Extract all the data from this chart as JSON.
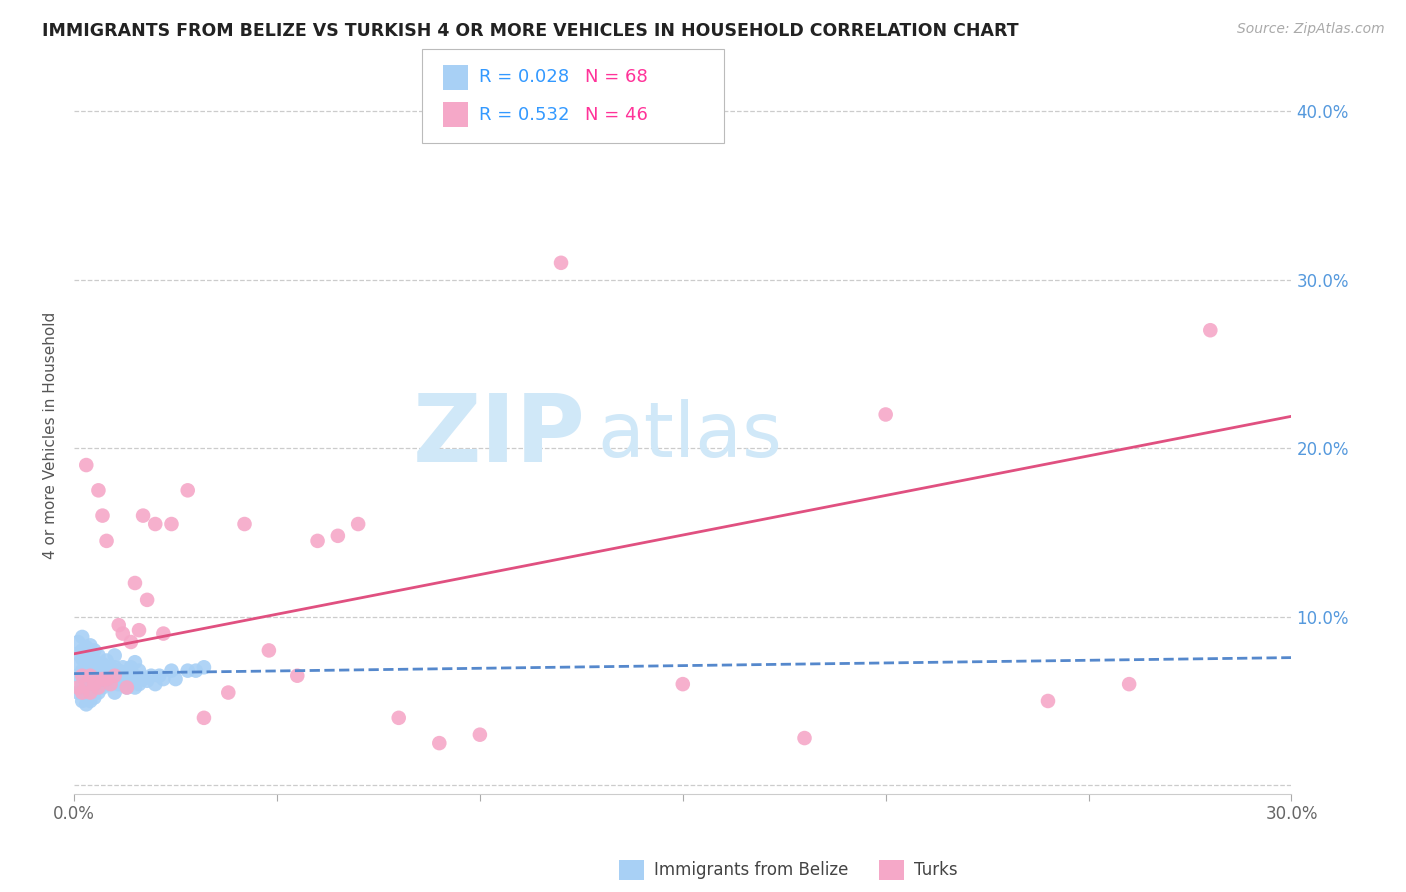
{
  "title": "IMMIGRANTS FROM BELIZE VS TURKISH 4 OR MORE VEHICLES IN HOUSEHOLD CORRELATION CHART",
  "source": "Source: ZipAtlas.com",
  "ylabel": "4 or more Vehicles in Household",
  "xlim": [
    0.0,
    0.3
  ],
  "ylim": [
    -0.005,
    0.42
  ],
  "xticks": [
    0.0,
    0.05,
    0.1,
    0.15,
    0.2,
    0.25,
    0.3
  ],
  "xticklabels": [
    "0.0%",
    "",
    "",
    "",
    "",
    "",
    "30.0%"
  ],
  "yticks": [
    0.0,
    0.1,
    0.2,
    0.3,
    0.4
  ],
  "yticklabels_right": [
    "",
    "10.0%",
    "20.0%",
    "30.0%",
    "40.0%"
  ],
  "belize_color": "#a8d0f5",
  "turks_color": "#f5a8c8",
  "belize_line_color": "#5588cc",
  "turks_line_color": "#e05080",
  "belize_R": 0.028,
  "belize_N": 68,
  "turks_R": 0.532,
  "turks_N": 46,
  "legend_R_color": "#3399ff",
  "legend_N_color": "#ff3399",
  "watermark_zip": "ZIP",
  "watermark_atlas": "atlas",
  "watermark_color": "#d0e8f8",
  "belize_x": [
    0.001,
    0.001,
    0.001,
    0.001,
    0.001,
    0.002,
    0.002,
    0.002,
    0.002,
    0.002,
    0.002,
    0.003,
    0.003,
    0.003,
    0.003,
    0.003,
    0.003,
    0.004,
    0.004,
    0.004,
    0.004,
    0.004,
    0.004,
    0.005,
    0.005,
    0.005,
    0.005,
    0.005,
    0.006,
    0.006,
    0.006,
    0.006,
    0.007,
    0.007,
    0.007,
    0.008,
    0.008,
    0.008,
    0.009,
    0.009,
    0.01,
    0.01,
    0.01,
    0.01,
    0.011,
    0.011,
    0.012,
    0.012,
    0.013,
    0.013,
    0.014,
    0.014,
    0.015,
    0.015,
    0.015,
    0.016,
    0.016,
    0.017,
    0.018,
    0.019,
    0.02,
    0.021,
    0.022,
    0.024,
    0.025,
    0.028,
    0.03,
    0.032
  ],
  "belize_y": [
    0.055,
    0.065,
    0.072,
    0.078,
    0.085,
    0.05,
    0.06,
    0.068,
    0.075,
    0.08,
    0.088,
    0.048,
    0.056,
    0.063,
    0.07,
    0.076,
    0.082,
    0.05,
    0.058,
    0.065,
    0.072,
    0.078,
    0.083,
    0.052,
    0.06,
    0.068,
    0.074,
    0.08,
    0.055,
    0.063,
    0.07,
    0.077,
    0.058,
    0.065,
    0.072,
    0.06,
    0.067,
    0.074,
    0.062,
    0.07,
    0.055,
    0.063,
    0.07,
    0.077,
    0.06,
    0.068,
    0.062,
    0.07,
    0.058,
    0.067,
    0.062,
    0.07,
    0.058,
    0.065,
    0.073,
    0.06,
    0.068,
    0.063,
    0.062,
    0.065,
    0.06,
    0.065,
    0.063,
    0.068,
    0.063,
    0.068,
    0.068,
    0.07
  ],
  "turks_x": [
    0.001,
    0.002,
    0.002,
    0.003,
    0.003,
    0.004,
    0.004,
    0.005,
    0.006,
    0.006,
    0.007,
    0.007,
    0.008,
    0.008,
    0.009,
    0.01,
    0.011,
    0.012,
    0.013,
    0.014,
    0.015,
    0.016,
    0.017,
    0.018,
    0.02,
    0.022,
    0.024,
    0.028,
    0.032,
    0.038,
    0.042,
    0.048,
    0.055,
    0.06,
    0.065,
    0.07,
    0.08,
    0.09,
    0.1,
    0.12,
    0.15,
    0.18,
    0.2,
    0.24,
    0.26,
    0.28
  ],
  "turks_y": [
    0.058,
    0.055,
    0.065,
    0.06,
    0.19,
    0.055,
    0.065,
    0.06,
    0.058,
    0.175,
    0.063,
    0.16,
    0.063,
    0.145,
    0.06,
    0.065,
    0.095,
    0.09,
    0.058,
    0.085,
    0.12,
    0.092,
    0.16,
    0.11,
    0.155,
    0.09,
    0.155,
    0.175,
    0.04,
    0.055,
    0.155,
    0.08,
    0.065,
    0.145,
    0.148,
    0.155,
    0.04,
    0.025,
    0.03,
    0.31,
    0.06,
    0.028,
    0.22,
    0.05,
    0.06,
    0.27
  ]
}
